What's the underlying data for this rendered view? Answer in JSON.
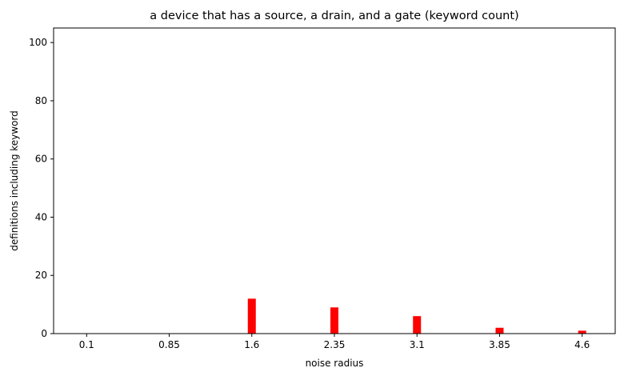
{
  "chart_data": {
    "type": "bar",
    "title": "a device that has a source, a drain, and a gate (keyword count)",
    "xlabel": "noise radius",
    "ylabel": "definitions including keyword",
    "x": [
      0.1,
      0.85,
      1.6,
      2.35,
      3.1,
      3.85,
      4.6
    ],
    "x_tick_labels": [
      "0.1",
      "0.85",
      "1.6",
      "2.35",
      "3.1",
      "3.85",
      "4.6"
    ],
    "values": [
      0,
      0,
      12,
      9,
      6,
      2,
      1
    ],
    "xlim": [
      -0.2,
      4.9
    ],
    "ylim": [
      0,
      105
    ],
    "y_ticks": [
      0,
      20,
      40,
      60,
      80,
      100
    ],
    "bar_color": "#ff0000",
    "grid": false,
    "legend": "none"
  }
}
